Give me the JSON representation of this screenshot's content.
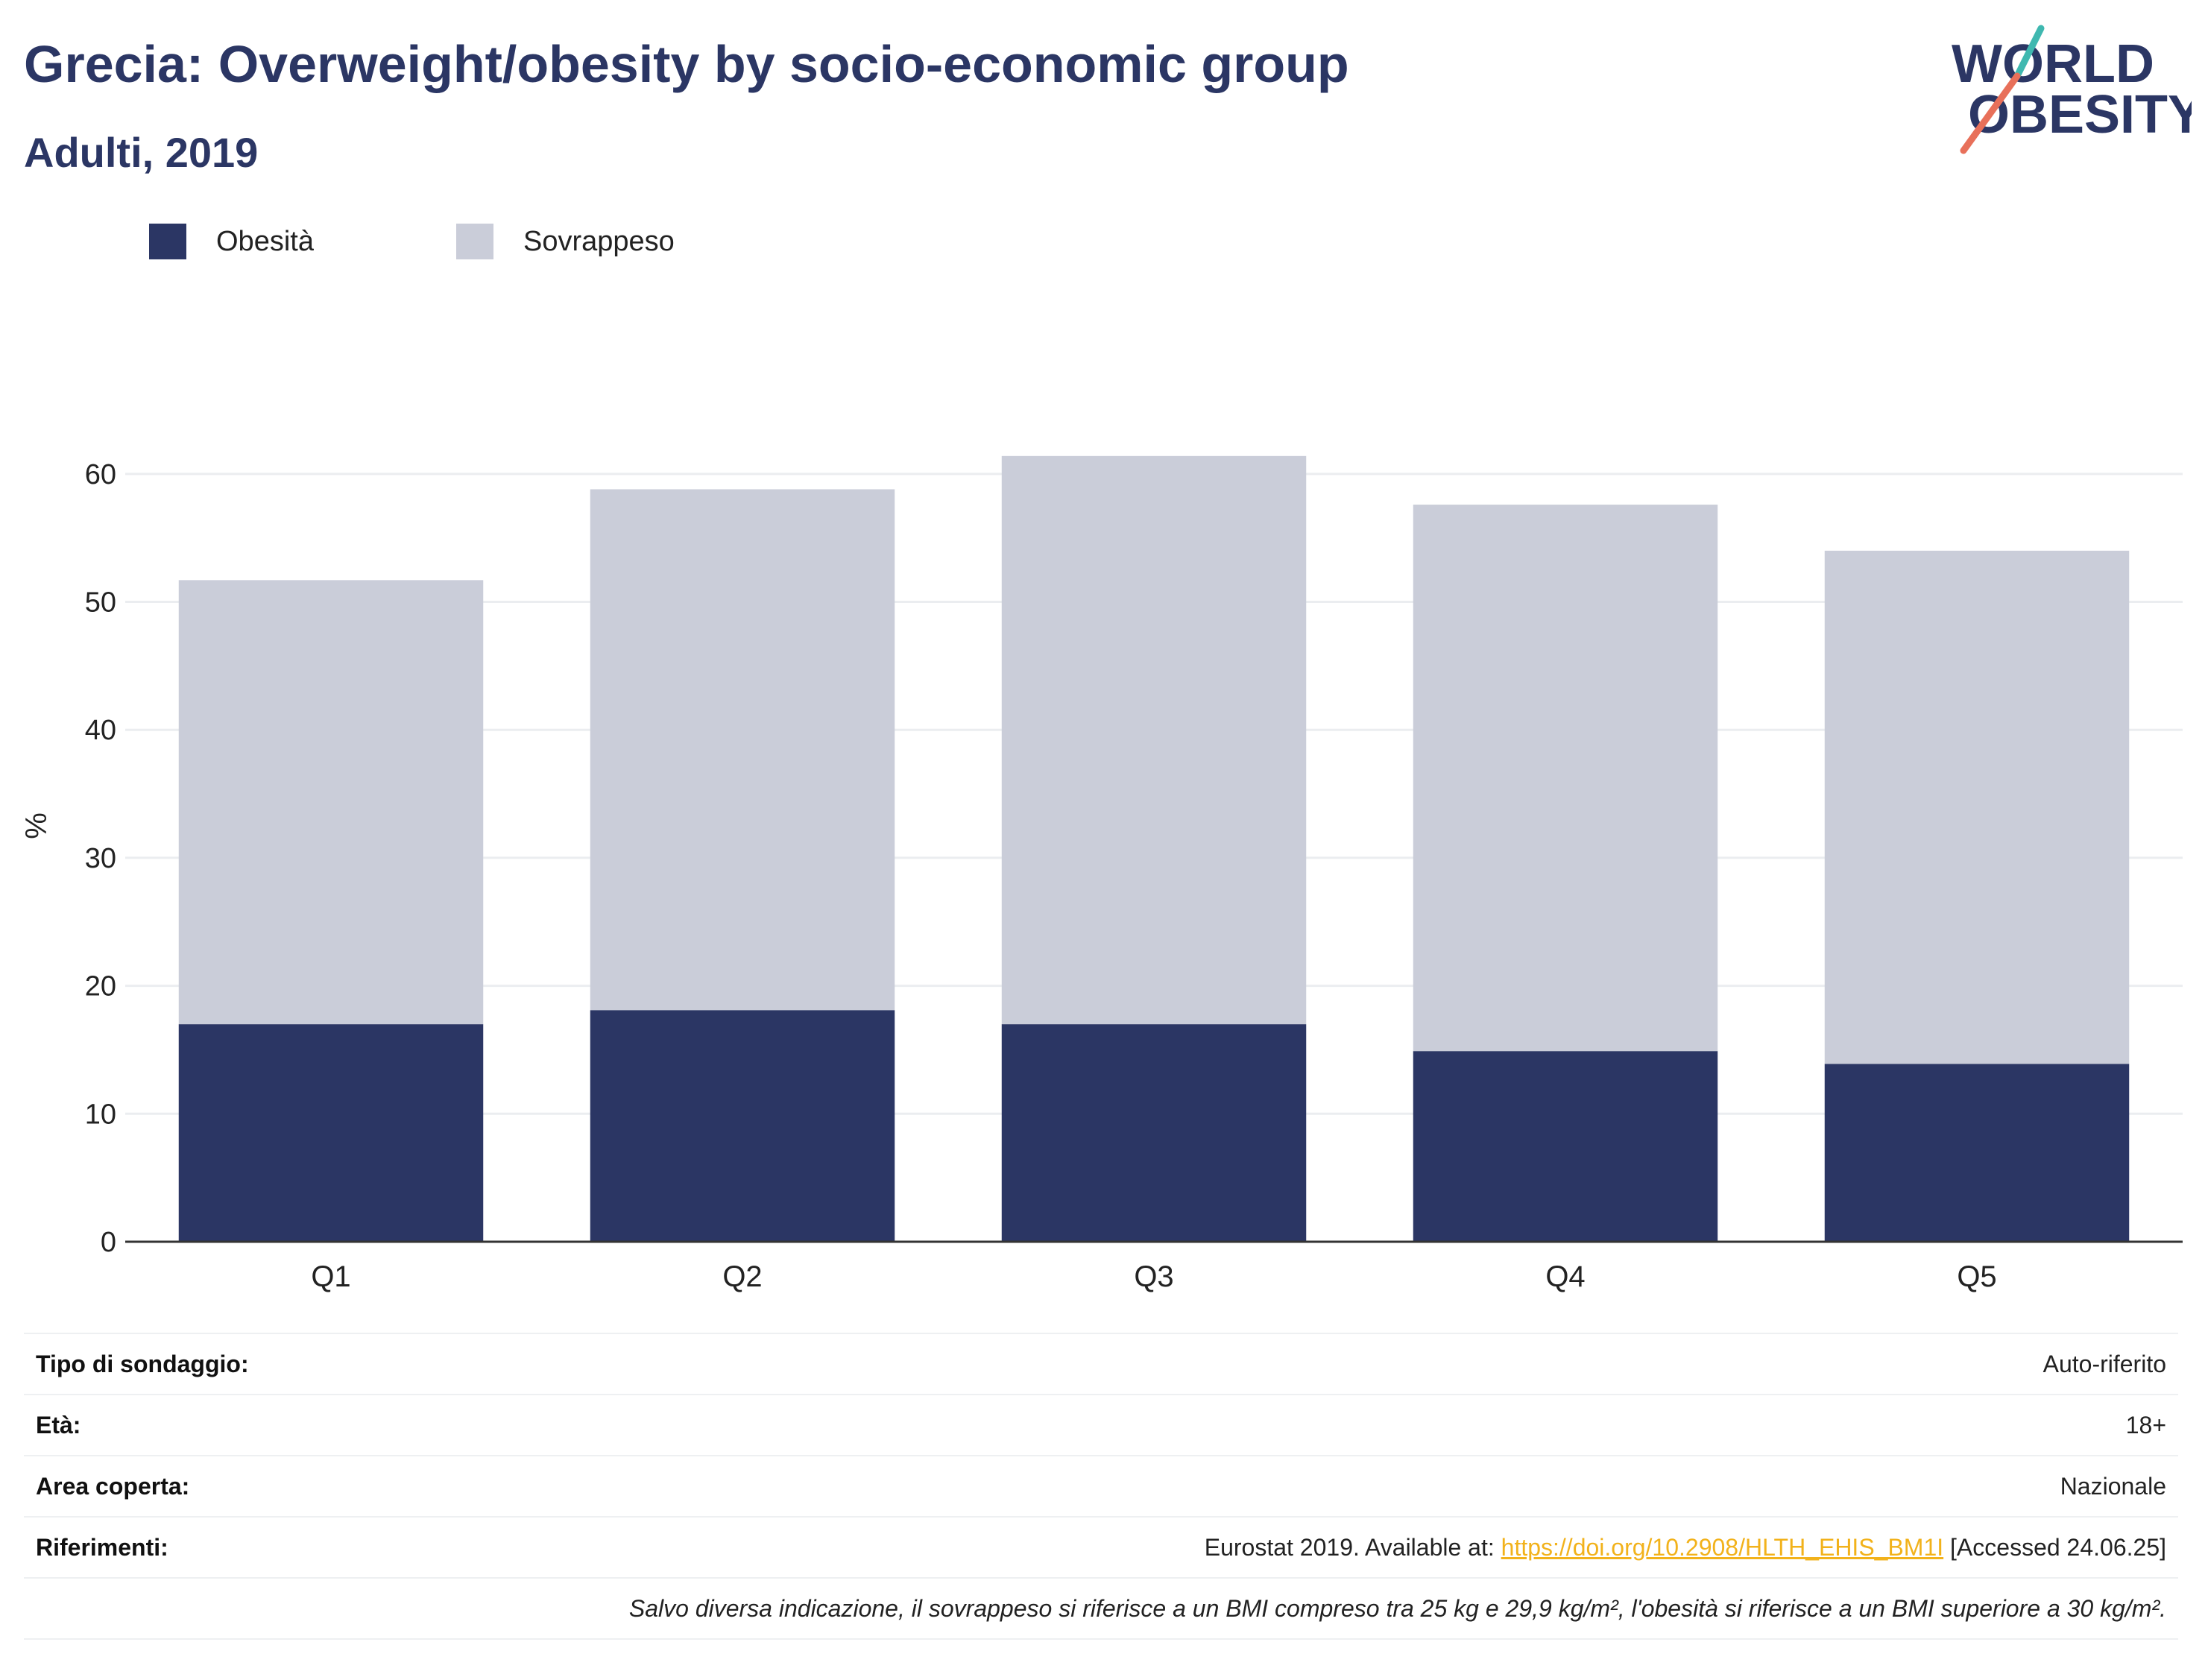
{
  "header": {
    "title": "Grecia: Overweight/obesity by socio-economic group",
    "subtitle": "Adulti, 2019"
  },
  "logo": {
    "line1": "WORLD",
    "line2": "OBESITY",
    "colors": {
      "text": "#2b3664",
      "slash_top": "#3fb8b0",
      "slash_bottom": "#e8705a"
    }
  },
  "colors": {
    "obesity": "#2b3664",
    "overweight": "#cacdd9",
    "gridline": "#ebedf0",
    "axis": "#333333",
    "link": "#f2b21b"
  },
  "chart_data": {
    "type": "bar",
    "stacked": true,
    "categories": [
      "Q1",
      "Q2",
      "Q3",
      "Q4",
      "Q5"
    ],
    "series": [
      {
        "name": "Obesità",
        "values": [
          17.0,
          18.1,
          17.0,
          14.9,
          13.9
        ],
        "color": "#2b3664"
      },
      {
        "name": "Sovrappeso",
        "values": [
          34.7,
          40.7,
          44.4,
          42.7,
          40.1
        ],
        "color": "#cacdd9"
      }
    ],
    "ylabel": "%",
    "xlabel": "",
    "ylim": [
      0,
      65
    ],
    "yticks": [
      0,
      10,
      20,
      30,
      40,
      50,
      60
    ],
    "grid": true,
    "legend_position": "top-left"
  },
  "info": {
    "survey_label": "Tipo di sondaggio:",
    "survey_value": "Auto-riferito",
    "age_label": "Età:",
    "age_value": "18+",
    "area_label": "Area coperta:",
    "area_value": "Nazionale",
    "ref_label": "Riferimenti:",
    "ref_prefix": "Eurostat 2019. Available at: ",
    "ref_link": "https://doi.org/10.2908/HLTH_EHIS_BM1I",
    "ref_suffix": " [Accessed 24.06.25]",
    "note": "Salvo diversa indicazione, il sovrappeso si riferisce a un BMI compreso tra 25 kg e 29,9 kg/m², l'obesità si riferisce a un BMI superiore a 30 kg/m²."
  }
}
